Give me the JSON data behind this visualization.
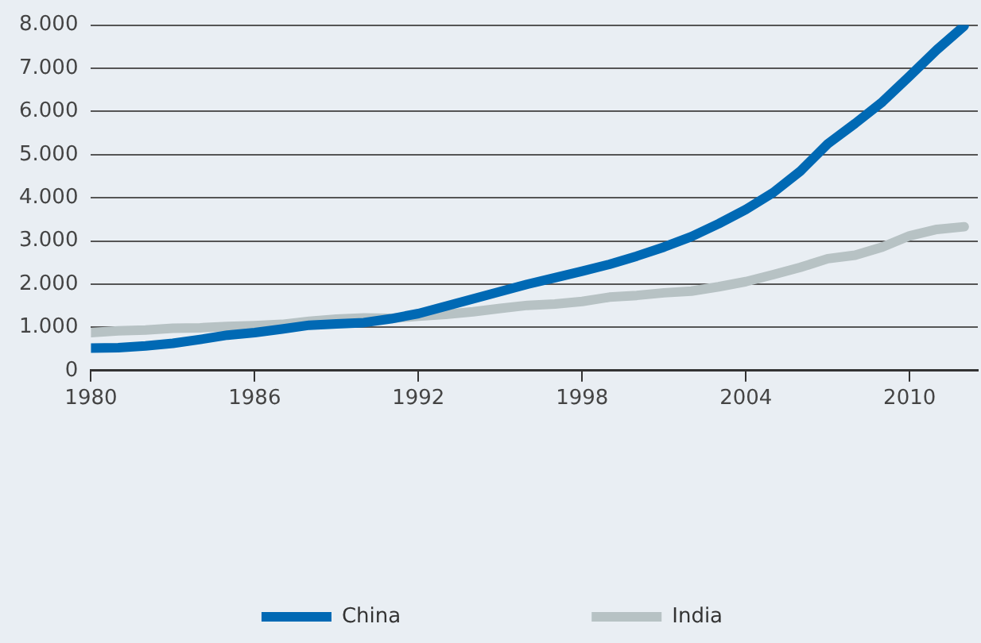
{
  "chart_data": {
    "type": "line",
    "x": [
      1980,
      1981,
      1982,
      1983,
      1984,
      1985,
      1986,
      1987,
      1988,
      1989,
      1990,
      1991,
      1992,
      1993,
      1994,
      1995,
      1996,
      1997,
      1998,
      1999,
      2000,
      2001,
      2002,
      2003,
      2004,
      2005,
      2006,
      2007,
      2008,
      2009,
      2010,
      2011,
      2012
    ],
    "series": [
      {
        "name": "China",
        "color": "#0069b4",
        "values": [
          520,
          530,
          570,
          630,
          720,
          820,
          880,
          960,
          1050,
          1080,
          1110,
          1200,
          1320,
          1490,
          1660,
          1830,
          2000,
          2150,
          2300,
          2460,
          2650,
          2860,
          3100,
          3400,
          3730,
          4120,
          4620,
          5250,
          5720,
          6220,
          6820,
          7430,
          7980
        ]
      },
      {
        "name": "India",
        "color": "#b7c2c4",
        "values": [
          880,
          920,
          940,
          980,
          990,
          1020,
          1040,
          1070,
          1140,
          1190,
          1220,
          1210,
          1260,
          1300,
          1360,
          1440,
          1510,
          1540,
          1600,
          1700,
          1740,
          1800,
          1840,
          1940,
          2060,
          2220,
          2390,
          2590,
          2670,
          2860,
          3120,
          3270,
          3330
        ]
      }
    ],
    "xlim": [
      1980,
      2012.5
    ],
    "xticks": [
      1980,
      1986,
      1992,
      1998,
      2004,
      2010
    ],
    "ylim": [
      0,
      8000
    ],
    "yticks": [
      0,
      {
        "value": 1000,
        "label": "1.000"
      },
      {
        "value": 2000,
        "label": "2.000"
      },
      {
        "value": 3000,
        "label": "3.000"
      },
      {
        "value": 4000,
        "label": "4.000"
      },
      {
        "value": 5000,
        "label": "5.000"
      },
      {
        "value": 6000,
        "label": "6.000"
      },
      {
        "value": 7000,
        "label": "7.000"
      },
      {
        "value": 8000,
        "label": "8.000"
      }
    ],
    "grid": "y",
    "legend": "bottom",
    "marker": "none",
    "line_style": "solid"
  }
}
